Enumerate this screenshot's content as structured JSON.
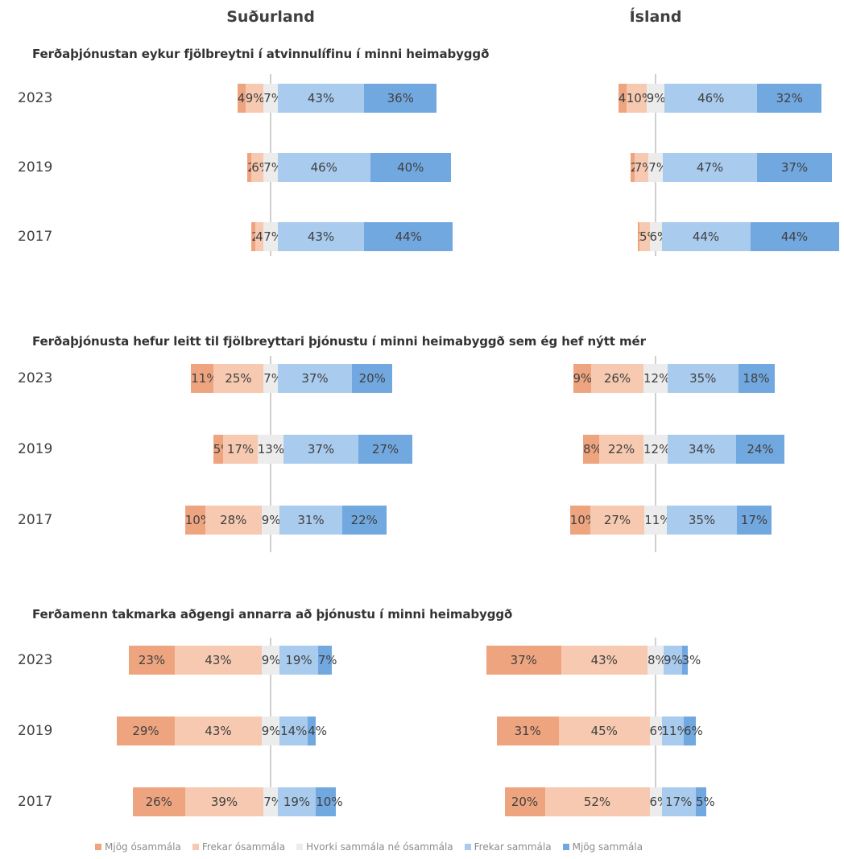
{
  "columns": [
    "Suðurland",
    "Ísland"
  ],
  "chart_data": [
    {
      "type": "bar",
      "orientation": "horizontal-diverging-stacked",
      "title": "Ferðaþjónustan eykur fjölbreytni í atvinnulífinu í minni heimabyggð",
      "panel": "Suðurland",
      "categories": [
        "2023",
        "2019",
        "2017"
      ],
      "series": [
        {
          "name": "Mjög ósammála",
          "values": [
            4,
            2,
            2
          ]
        },
        {
          "name": "Frekar ósammála",
          "values": [
            9,
            6,
            4
          ]
        },
        {
          "name": "Hvorki sammála né ósammála",
          "values": [
            7,
            7,
            7
          ]
        },
        {
          "name": "Frekar sammála",
          "values": [
            43,
            46,
            43
          ]
        },
        {
          "name": "Mjög sammála",
          "values": [
            36,
            40,
            44
          ]
        }
      ]
    },
    {
      "type": "bar",
      "orientation": "horizontal-diverging-stacked",
      "title": "Ferðaþjónustan eykur fjölbreytni í atvinnulífinu í minni heimabyggð",
      "panel": "Ísland",
      "categories": [
        "2023",
        "2019",
        "2017"
      ],
      "series": [
        {
          "name": "Mjög ósammála",
          "values": [
            4,
            2,
            1
          ]
        },
        {
          "name": "Frekar ósammála",
          "values": [
            10,
            7,
            5
          ]
        },
        {
          "name": "Hvorki sammála né ósammála",
          "values": [
            9,
            7,
            6
          ]
        },
        {
          "name": "Frekar sammála",
          "values": [
            46,
            47,
            44
          ]
        },
        {
          "name": "Mjög sammála",
          "values": [
            32,
            37,
            44
          ]
        }
      ]
    },
    {
      "type": "bar",
      "orientation": "horizontal-diverging-stacked",
      "title": "Ferðaþjónusta hefur leitt til fjölbreyttari þjónustu í minni heimabyggð sem ég hef nýtt mér",
      "panel": "Suðurland",
      "categories": [
        "2023",
        "2019",
        "2017"
      ],
      "series": [
        {
          "name": "Mjög ósammála",
          "values": [
            11,
            5,
            10
          ]
        },
        {
          "name": "Frekar ósammála",
          "values": [
            25,
            17,
            28
          ]
        },
        {
          "name": "Hvorki sammála né ósammála",
          "values": [
            7,
            13,
            9
          ]
        },
        {
          "name": "Frekar sammála",
          "values": [
            37,
            37,
            31
          ]
        },
        {
          "name": "Mjög sammála",
          "values": [
            20,
            27,
            22
          ]
        }
      ]
    },
    {
      "type": "bar",
      "orientation": "horizontal-diverging-stacked",
      "title": "Ferðaþjónusta hefur leitt til fjölbreyttari þjónustu í minni heimabyggð sem ég hef nýtt mér",
      "panel": "Ísland",
      "categories": [
        "2023",
        "2019",
        "2017"
      ],
      "series": [
        {
          "name": "Mjög ósammála",
          "values": [
            9,
            8,
            10
          ]
        },
        {
          "name": "Frekar ósammála",
          "values": [
            26,
            22,
            27
          ]
        },
        {
          "name": "Hvorki sammála né ósammála",
          "values": [
            12,
            12,
            11
          ]
        },
        {
          "name": "Frekar sammála",
          "values": [
            35,
            34,
            35
          ]
        },
        {
          "name": "Mjög sammála",
          "values": [
            18,
            24,
            17
          ]
        }
      ]
    },
    {
      "type": "bar",
      "orientation": "horizontal-diverging-stacked",
      "title": "Ferðamenn takmarka aðgengi annarra að þjónustu í minni heimabyggð",
      "panel": "Suðurland",
      "categories": [
        "2023",
        "2019",
        "2017"
      ],
      "series": [
        {
          "name": "Mjög ósammála",
          "values": [
            23,
            29,
            26
          ]
        },
        {
          "name": "Frekar ósammála",
          "values": [
            43,
            43,
            39
          ]
        },
        {
          "name": "Hvorki sammála né ósammála",
          "values": [
            9,
            9,
            7
          ]
        },
        {
          "name": "Frekar sammála",
          "values": [
            19,
            14,
            19
          ]
        },
        {
          "name": "Mjög sammála",
          "values": [
            7,
            4,
            10
          ]
        }
      ]
    },
    {
      "type": "bar",
      "orientation": "horizontal-diverging-stacked",
      "title": "Ferðamenn takmarka aðgengi annarra að þjónustu í minni heimabyggð",
      "panel": "Ísland",
      "categories": [
        "2023",
        "2019",
        "2017"
      ],
      "series": [
        {
          "name": "Mjög ósammála",
          "values": [
            37,
            31,
            20
          ]
        },
        {
          "name": "Frekar ósammála",
          "values": [
            43,
            45,
            52
          ]
        },
        {
          "name": "Hvorki sammála né ósammála",
          "values": [
            8,
            6,
            6
          ]
        },
        {
          "name": "Frekar sammála",
          "values": [
            9,
            11,
            17
          ]
        },
        {
          "name": "Mjög sammála",
          "values": [
            3,
            6,
            5
          ]
        }
      ]
    }
  ],
  "legend": {
    "position": "bottom",
    "items": [
      {
        "label": "Mjög ósammála",
        "color": "#eea57f"
      },
      {
        "label": "Frekar ósammála",
        "color": "#f6c9b0"
      },
      {
        "label": "Hvorki sammála né ósammála",
        "color": "#ececec"
      },
      {
        "label": "Frekar sammála",
        "color": "#a9cbee"
      },
      {
        "label": "Mjög sammála",
        "color": "#72a8e0"
      }
    ]
  }
}
